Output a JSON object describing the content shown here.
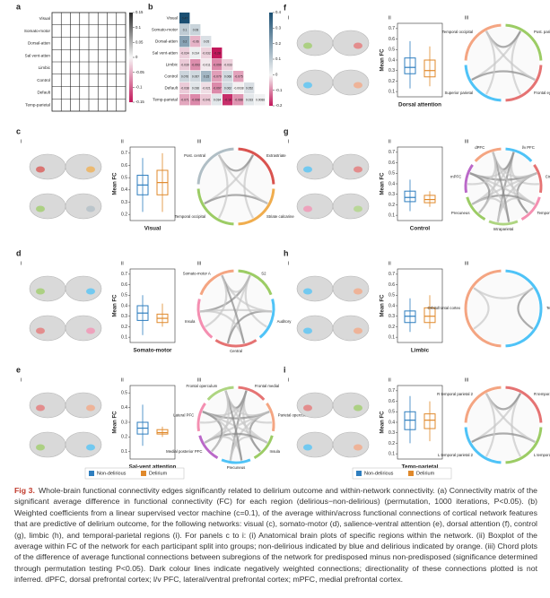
{
  "panel_a": {
    "label": "a",
    "networks": [
      "Visual",
      "Somato-motor",
      "Dorsal-atten",
      "Sal vent-atten",
      "Limbic",
      "Control",
      "Default",
      "Temp-parietal"
    ],
    "colorbar_ticks": [
      0.15,
      0.1,
      0.05,
      0,
      -0.05,
      -0.1,
      -0.15
    ]
  },
  "panel_b": {
    "label": "b",
    "networks": [
      "Visual",
      "Somato-motor",
      "Dorsal-atten",
      "Sal vent-atten",
      "Limbic",
      "Control",
      "Default",
      "Temp-parietal"
    ],
    "values": [
      [
        0.47
      ],
      [
        0.1,
        0.08
      ],
      [
        0.2,
        -0.06,
        0.05
      ],
      [
        -0.034,
        0.014,
        -0.032,
        -0.28
      ],
      [
        -0.039,
        -0.093,
        -0.011,
        -0.099,
        -0.033
      ],
      [
        0.076,
        0.067,
        0.15,
        -0.079,
        0.068,
        -0.075
      ],
      [
        -0.038,
        0.036,
        -0.021,
        -0.097,
        0.062,
        -0.0038,
        0.052
      ],
      [
        -0.071,
        -0.098,
        -0.041,
        0.034,
        -0.18,
        -0.088,
        0.033,
        0.0088
      ]
    ],
    "colorbar_ticks": [
      0.4,
      0.3,
      0.2,
      0.1,
      0,
      -0.1,
      -0.2
    ]
  },
  "sublabels": [
    "i",
    "ii",
    "iii"
  ],
  "ylabel": "Mean FC",
  "legend": [
    {
      "name": "Non-delirious",
      "color": "#2e7ebf"
    },
    {
      "name": "Delirium",
      "color": "#e0892b"
    }
  ],
  "network_panels": [
    {
      "label": "c",
      "title": "Visual",
      "ylim": [
        0.15,
        0.75
      ],
      "yticks": [
        0.2,
        0.3,
        0.4,
        0.5,
        0.6,
        0.7
      ],
      "boxes": [
        {
          "min": 0.22,
          "q1": 0.36,
          "median": 0.44,
          "q3": 0.52,
          "max": 0.66
        },
        {
          "min": 0.22,
          "q1": 0.36,
          "median": 0.46,
          "q3": 0.56,
          "max": 0.7
        }
      ],
      "chord_labels": [
        "Extrastriate",
        "Striate calcarine",
        "Temporal occipital",
        "Post. central"
      ],
      "chord_colors": [
        "#d9534f",
        "#f0ad4e",
        "#9ccc65",
        "#b0bec5"
      ]
    },
    {
      "label": "d",
      "title": "Somato-motor",
      "ylim": [
        0.05,
        0.75
      ],
      "yticks": [
        0.1,
        0.2,
        0.3,
        0.4,
        0.5,
        0.6,
        0.7
      ],
      "boxes": [
        {
          "min": 0.12,
          "q1": 0.26,
          "median": 0.33,
          "q3": 0.4,
          "max": 0.5
        },
        {
          "min": 0.2,
          "q1": 0.24,
          "median": 0.28,
          "q3": 0.32,
          "max": 0.42
        }
      ],
      "chord_labels": [
        "S2",
        "Auditory",
        "Central",
        "Insula",
        "Somato-motor A"
      ],
      "chord_colors": [
        "#9ccc65",
        "#4fc3f7",
        "#e57373",
        "#f48fb1",
        "#f4a582"
      ]
    },
    {
      "label": "e",
      "title": "Sal-vent attention",
      "ylim": [
        0.05,
        0.55
      ],
      "yticks": [
        0.1,
        0.2,
        0.3,
        0.4,
        0.5
      ],
      "boxes": [
        {
          "min": 0.14,
          "q1": 0.22,
          "median": 0.26,
          "q3": 0.3,
          "max": 0.42
        },
        {
          "min": 0.2,
          "q1": 0.22,
          "median": 0.23,
          "q3": 0.25,
          "max": 0.27
        }
      ],
      "chord_labels": [
        "Frontal medial",
        "Parietal operculum",
        "Insula",
        "Precuneus",
        "Medial posterior PFC",
        "Lateral PFC",
        "Frontal operculum"
      ],
      "chord_colors": [
        "#e57373",
        "#f4a582",
        "#9ccc65",
        "#4fc3f7",
        "#ba68c8",
        "#f48fb1",
        "#aed581"
      ]
    },
    {
      "label": "f",
      "title": "Dorsal attention",
      "ylim": [
        0.05,
        0.75
      ],
      "yticks": [
        0.1,
        0.2,
        0.3,
        0.4,
        0.5,
        0.6,
        0.7
      ],
      "boxes": [
        {
          "min": 0.13,
          "q1": 0.27,
          "median": 0.33,
          "q3": 0.42,
          "max": 0.58
        },
        {
          "min": 0.15,
          "q1": 0.24,
          "median": 0.3,
          "q3": 0.4,
          "max": 0.53
        }
      ],
      "chord_labels": [
        "Post. parietal",
        "Frontal eye fields",
        "Superior parietal",
        "Temporal occipital"
      ],
      "chord_colors": [
        "#9ccc65",
        "#e57373",
        "#4fc3f7",
        "#f4a582"
      ]
    },
    {
      "label": "g",
      "title": "Control",
      "ylim": [
        0.05,
        0.75
      ],
      "yticks": [
        0.1,
        0.2,
        0.3,
        0.4,
        0.5,
        0.6,
        0.7
      ],
      "boxes": [
        {
          "min": 0.14,
          "q1": 0.23,
          "median": 0.27,
          "q3": 0.33,
          "max": 0.44
        },
        {
          "min": 0.18,
          "q1": 0.22,
          "median": 0.25,
          "q3": 0.29,
          "max": 0.33
        }
      ],
      "chord_labels": [
        "l/v PFC",
        "Cingulate",
        "Temporal",
        "Intraparietal",
        "Precuneus",
        "mPFC",
        "dPFC"
      ],
      "chord_colors": [
        "#4fc3f7",
        "#e57373",
        "#f48fb1",
        "#aed581",
        "#9ccc65",
        "#ba68c8",
        "#f4a582"
      ]
    },
    {
      "label": "h",
      "title": "Limbic",
      "ylim": [
        0.05,
        0.75
      ],
      "yticks": [
        0.1,
        0.2,
        0.3,
        0.4,
        0.5,
        0.6,
        0.7
      ],
      "boxes": [
        {
          "min": 0.15,
          "q1": 0.24,
          "median": 0.3,
          "q3": 0.35,
          "max": 0.47
        },
        {
          "min": 0.18,
          "q1": 0.24,
          "median": 0.3,
          "q3": 0.38,
          "max": 0.5
        }
      ],
      "chord_labels": [
        "Temporal pole",
        "Orbitofrontal cortex"
      ],
      "chord_colors": [
        "#4fc3f7",
        "#f4a582"
      ]
    },
    {
      "label": "i",
      "title": "Temp-parietal",
      "ylim": [
        0.05,
        0.75
      ],
      "yticks": [
        0.1,
        0.2,
        0.3,
        0.4,
        0.5,
        0.6,
        0.7
      ],
      "boxes": [
        {
          "min": 0.2,
          "q1": 0.33,
          "median": 0.42,
          "q3": 0.5,
          "max": 0.65
        },
        {
          "min": 0.22,
          "q1": 0.34,
          "median": 0.42,
          "q3": 0.48,
          "max": 0.6
        }
      ],
      "chord_labels": [
        "R temporal parietal",
        "L temporal parietal",
        "L temporal parietal 2",
        "R temporal parietal 2"
      ],
      "chord_colors": [
        "#e57373",
        "#9ccc65",
        "#4fc3f7",
        "#f4a582"
      ]
    }
  ],
  "caption": {
    "label": "Fig 3.",
    "text": "Whole-brain functional connectivity edges significantly related to delirium outcome and within-network connectivity. (a) Connectivity matrix of the significant average difference in functional connectivity (FC) for each region (delirious−non-delirious) (permutation, 1000 iterations, P<0.05). (b) Weighted coefficients from a linear supervised vector machine (c=0.1), of the average within/across functional connections of cortical network features that are predictive of delirium outcome, for the following networks: visual (c), somato-motor (d), salience-ventral attention (e), dorsal attention (f), control (g), limbic (h), and temporal-parietal regions (i). For panels c to i: (i) Anatomical brain plots of specific regions within the network. (ii) Boxplot of the average within FC of the network for each participant split into groups; non-delirious indicated by blue and delirious indicated by orange. (iii) Chord plots of the difference of average functional connections between subregions of the network for predisposed minus non-predisposed (significance determined through permutation testing P<0.05). Dark colour lines indicate negatively weighted connections; directionality of these connections plotted is not inferred. dPFC, dorsal prefrontal cortex; l/v PFC, lateral/ventral prefrontal cortex; mPFC, medial prefrontal cortex."
  }
}
